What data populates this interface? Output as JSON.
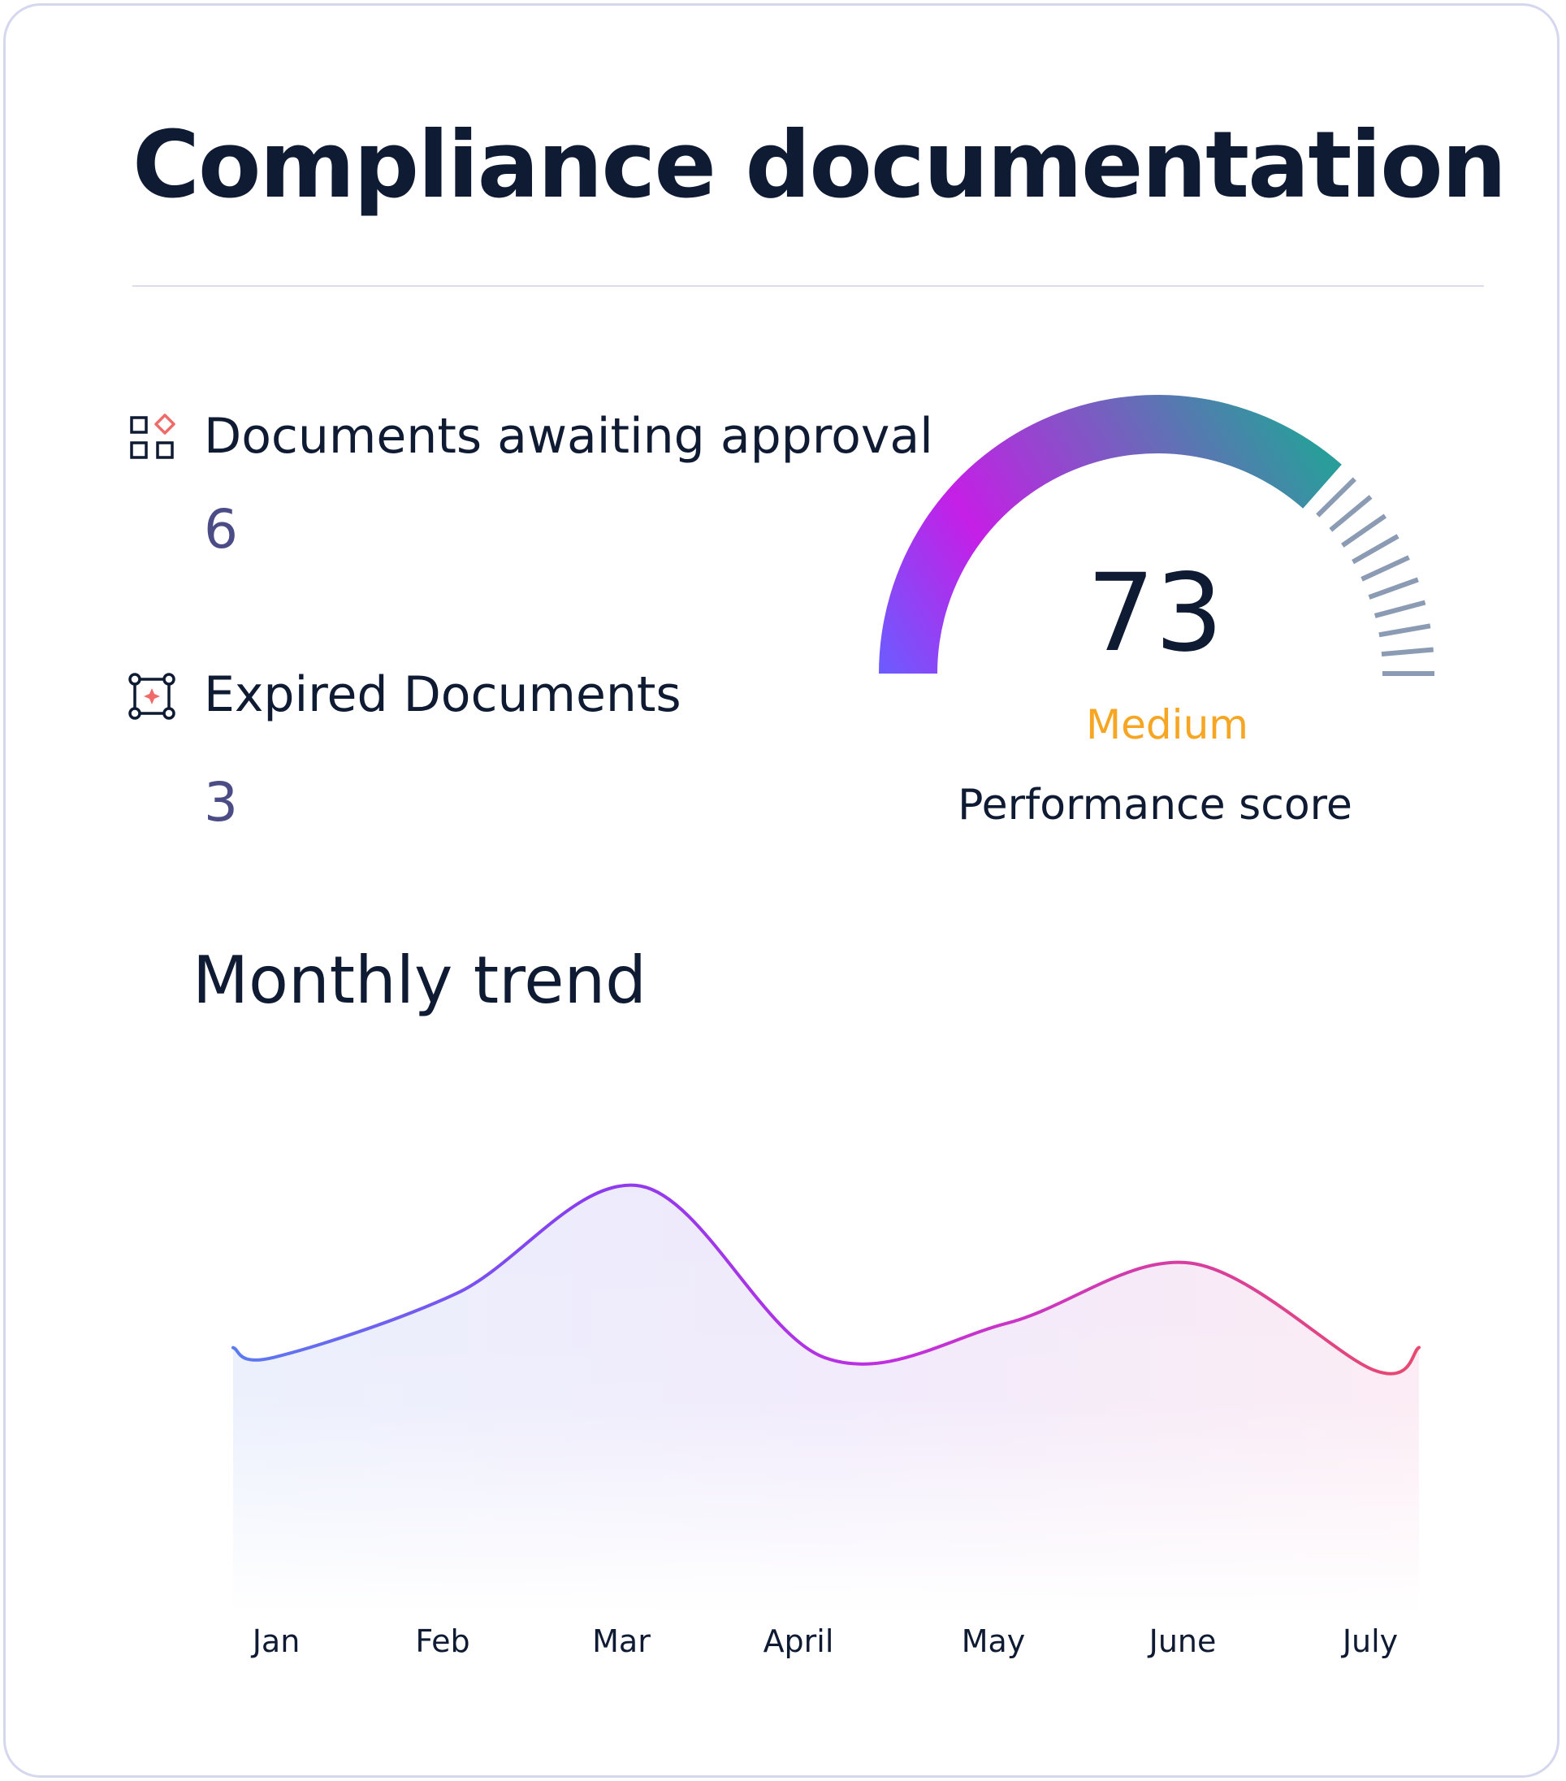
{
  "card": {
    "title": "Compliance documentation"
  },
  "stats": [
    {
      "label": "Documents awaiting approval",
      "value": "6",
      "icon": "shapes-icon"
    },
    {
      "label": "Expired Documents",
      "value": "3",
      "icon": "expired-frame-icon"
    }
  ],
  "gauge": {
    "score": "73",
    "fraction": 0.73,
    "rating": "Medium",
    "caption": "Performance score",
    "colors": {
      "start": "#6b5cff",
      "middle": "#c51fe6",
      "end": "#2a9d9b",
      "ticks": "#8b9bb4",
      "rating": "#f6a623"
    }
  },
  "trend": {
    "title": "Monthly trend"
  },
  "chart_data": {
    "type": "area",
    "categories": [
      "Jan",
      "Feb",
      "Mar",
      "April",
      "May",
      "June",
      "July"
    ],
    "values": [
      60,
      75,
      100,
      60,
      68,
      82,
      57
    ],
    "ylim": [
      0,
      110
    ],
    "grid": false,
    "colors": {
      "line_start": "#5b7bf0",
      "line_mid": "#a733e6",
      "line_end": "#e84a6f"
    }
  }
}
